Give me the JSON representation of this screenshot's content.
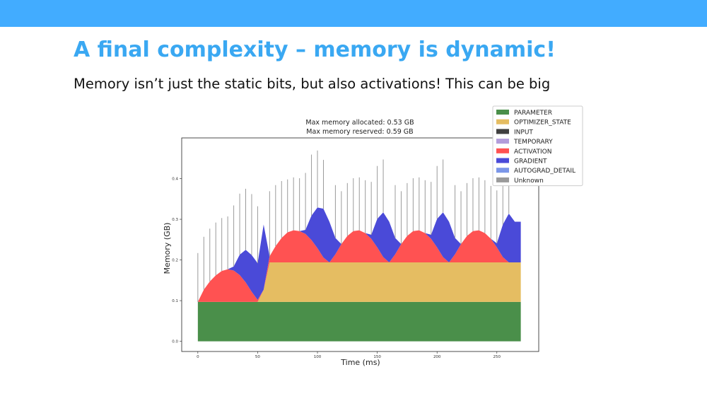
{
  "slide": {
    "title": "A final complexity – memory is dynamic!",
    "subtitle": "Memory isn’t just the static bits, but also activations! This can be big"
  },
  "chart_data": {
    "type": "stacked_area",
    "title": "Max memory allocated: 0.53 GB",
    "subtitle": "Max memory reserved: 0.59 GB",
    "xlabel": "Time (ms)",
    "ylabel": "Memory (GB)",
    "xlim": [
      -13.5,
      285
    ],
    "ylim": [
      -0.025,
      0.5
    ],
    "xticks": [
      0,
      50,
      100,
      150,
      200,
      250
    ],
    "yticks": [
      {
        "value": 0,
        "label": "0.0"
      },
      0.1,
      0.2,
      0.3,
      0.4
    ],
    "legend": "upper right",
    "x": [
      0,
      5,
      10,
      15,
      20,
      25,
      30,
      35,
      40,
      45,
      50,
      55,
      60,
      65,
      70,
      75,
      80,
      85,
      90,
      95,
      100,
      105,
      110,
      115,
      120,
      125,
      130,
      135,
      140,
      145,
      150,
      155,
      160,
      165,
      170,
      175,
      180,
      185,
      190,
      195,
      200,
      205,
      210,
      215,
      220,
      225,
      230,
      235,
      240,
      245,
      250,
      255,
      260,
      265,
      270
    ],
    "series": [
      {
        "name": "PARAMETER",
        "color": "#4a8f4a",
        "values": [
          0.097,
          0.097,
          0.097,
          0.097,
          0.097,
          0.097,
          0.097,
          0.097,
          0.097,
          0.097,
          0.097,
          0.097,
          0.097,
          0.097,
          0.097,
          0.097,
          0.097,
          0.097,
          0.097,
          0.097,
          0.097,
          0.097,
          0.097,
          0.097,
          0.097,
          0.097,
          0.097,
          0.097,
          0.097,
          0.097,
          0.097,
          0.097,
          0.097,
          0.097,
          0.097,
          0.097,
          0.097,
          0.097,
          0.097,
          0.097,
          0.097,
          0.097,
          0.097,
          0.097,
          0.097,
          0.097,
          0.097,
          0.097,
          0.097,
          0.097,
          0.097,
          0.097,
          0.097,
          0.097,
          0.097
        ]
      },
      {
        "name": "OPTIMIZER_STATE",
        "color": "#e5bd62",
        "values": [
          0,
          0,
          0,
          0,
          0,
          0,
          0,
          0,
          0,
          0,
          0,
          0.03,
          0.097,
          0.097,
          0.097,
          0.097,
          0.097,
          0.097,
          0.097,
          0.097,
          0.097,
          0.097,
          0.097,
          0.097,
          0.097,
          0.097,
          0.097,
          0.097,
          0.097,
          0.097,
          0.097,
          0.097,
          0.097,
          0.097,
          0.097,
          0.097,
          0.097,
          0.097,
          0.097,
          0.097,
          0.097,
          0.097,
          0.097,
          0.097,
          0.097,
          0.097,
          0.097,
          0.097,
          0.097,
          0.097,
          0.097,
          0.097,
          0.097,
          0.097,
          0.097
        ]
      },
      {
        "name": "INPUT",
        "color": "#404040",
        "values": [
          0,
          0,
          0,
          0,
          0,
          0,
          0,
          0,
          0,
          0,
          0,
          0,
          0,
          0,
          0,
          0,
          0,
          0,
          0,
          0,
          0,
          0,
          0,
          0,
          0,
          0,
          0,
          0,
          0,
          0,
          0,
          0,
          0,
          0,
          0,
          0,
          0,
          0,
          0,
          0,
          0,
          0,
          0,
          0,
          0,
          0,
          0,
          0,
          0,
          0,
          0,
          0,
          0,
          0,
          0
        ]
      },
      {
        "name": "TEMPORARY",
        "color": "#b39ddb",
        "values": [
          0,
          0,
          0,
          0,
          0,
          0,
          0,
          0,
          0,
          0,
          0,
          0,
          0,
          0,
          0,
          0,
          0,
          0,
          0,
          0,
          0,
          0,
          0,
          0,
          0,
          0,
          0,
          0,
          0,
          0,
          0,
          0,
          0,
          0,
          0,
          0,
          0,
          0,
          0,
          0,
          0,
          0,
          0,
          0,
          0,
          0,
          0,
          0,
          0,
          0,
          0,
          0,
          0,
          0,
          0
        ]
      },
      {
        "name": "ACTIVATION",
        "color": "#ff5252",
        "values": [
          0,
          0.03,
          0.05,
          0.065,
          0.076,
          0.08,
          0.077,
          0.066,
          0.048,
          0.025,
          0.005,
          0,
          0.015,
          0.04,
          0.06,
          0.074,
          0.079,
          0.077,
          0.07,
          0.055,
          0.035,
          0.012,
          0,
          0.02,
          0.045,
          0.065,
          0.077,
          0.079,
          0.072,
          0.058,
          0.037,
          0.013,
          0,
          0.02,
          0.045,
          0.065,
          0.077,
          0.079,
          0.072,
          0.058,
          0.037,
          0.013,
          0,
          0.02,
          0.045,
          0.065,
          0.077,
          0.079,
          0.072,
          0.058,
          0.037,
          0.013,
          0,
          0,
          0
        ]
      },
      {
        "name": "GRADIENT",
        "color": "#4a4ad8",
        "values": [
          0,
          0,
          0,
          0,
          0,
          0,
          0.01,
          0.05,
          0.08,
          0.09,
          0.09,
          0.16,
          0,
          0,
          0,
          0,
          0,
          0,
          0.01,
          0.06,
          0.1,
          0.12,
          0.1,
          0.04,
          0,
          0,
          0,
          0,
          0,
          0.01,
          0.07,
          0.11,
          0.1,
          0.04,
          0,
          0,
          0,
          0,
          0,
          0.01,
          0.07,
          0.11,
          0.1,
          0.04,
          0,
          0,
          0,
          0,
          0,
          0,
          0.01,
          0.08,
          0.12,
          0.1,
          0.1
        ]
      },
      {
        "name": "AUTOGRAD_DETAIL",
        "color": "#7b96e8",
        "values": [
          0,
          0,
          0,
          0,
          0,
          0,
          0,
          0,
          0,
          0,
          0,
          0,
          0,
          0,
          0,
          0,
          0,
          0,
          0,
          0,
          0,
          0,
          0,
          0,
          0,
          0,
          0,
          0,
          0,
          0,
          0,
          0,
          0,
          0,
          0,
          0,
          0,
          0,
          0,
          0,
          0,
          0,
          0,
          0,
          0,
          0,
          0,
          0,
          0,
          0,
          0,
          0,
          0,
          0,
          0
        ]
      },
      {
        "name": "Unknown",
        "color": "#9a9a9a",
        "style": "spikes",
        "values": [
          0.12,
          0.13,
          0.13,
          0.13,
          0.13,
          0.13,
          0.15,
          0.15,
          0.15,
          0.15,
          0.14,
          0,
          0.16,
          0.15,
          0.14,
          0.13,
          0.13,
          0.13,
          0.14,
          0.15,
          0.14,
          0.12,
          0,
          0.13,
          0.13,
          0.13,
          0.13,
          0.13,
          0.13,
          0.13,
          0.13,
          0.13,
          0,
          0.13,
          0.13,
          0.13,
          0.13,
          0.13,
          0.13,
          0.13,
          0.13,
          0.13,
          0,
          0.13,
          0.13,
          0.13,
          0.13,
          0.13,
          0.13,
          0.13,
          0.13,
          0.13,
          0.13,
          0,
          0
        ]
      }
    ]
  }
}
